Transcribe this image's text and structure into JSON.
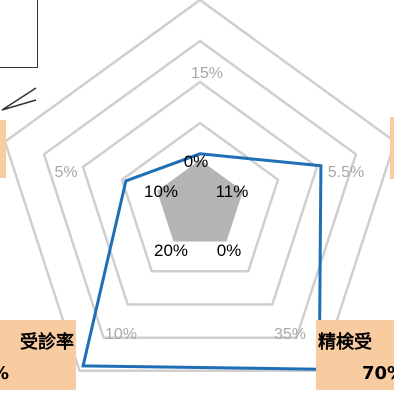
{
  "chart_data": {
    "type": "radar",
    "axis_count": 5,
    "rmax": 100,
    "ring_values": [
      20,
      40,
      60,
      80,
      100
    ],
    "ring_labels": [
      "15%",
      "5.5%",
      "35%",
      "10%",
      "5%"
    ],
    "inner_series": {
      "values": [
        0,
        11,
        0,
        20,
        10
      ],
      "labels": [
        "0%",
        "11%",
        "0%",
        "20%",
        "10%"
      ],
      "color": "#b4b4b4"
    },
    "outer_series": {
      "values": [
        25,
        62,
        99,
        97,
        38
      ],
      "color": "#1f6fb6"
    }
  },
  "category_labels": {
    "bottom_left_title": "受診率",
    "bottom_left_value": "%",
    "bottom_right_title": "精検受",
    "bottom_right_value": "70%"
  },
  "colors": {
    "label_fill": "#f8cba1",
    "grid": "#cfcfcf"
  }
}
